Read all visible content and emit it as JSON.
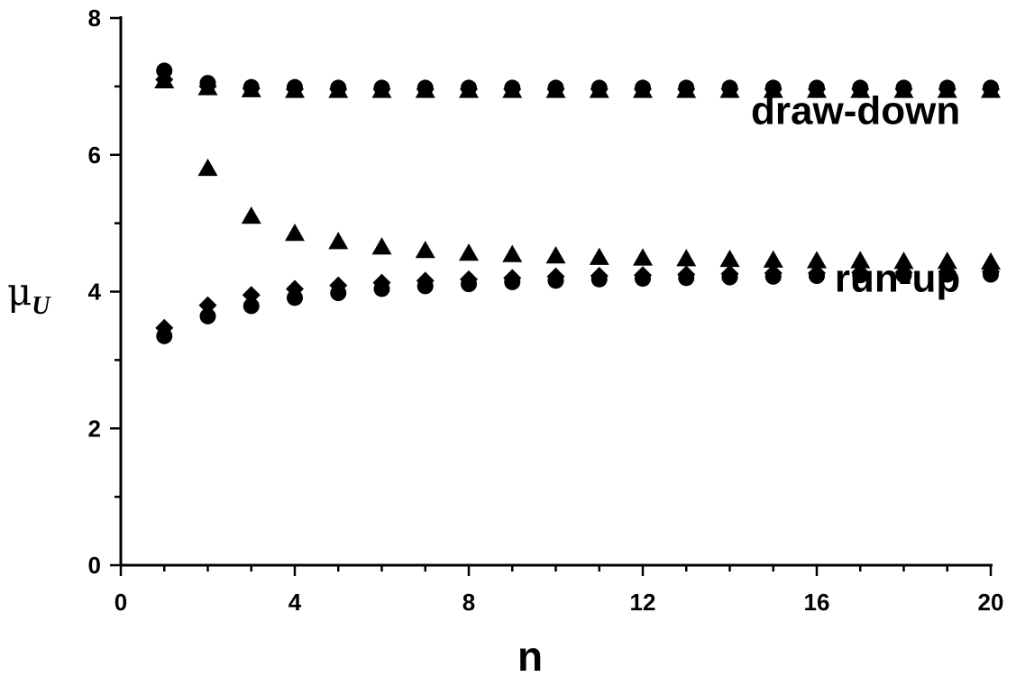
{
  "chart_data": {
    "type": "scatter",
    "xlabel": "n",
    "ylabel": {
      "symbol": "μ",
      "subscript": "U"
    },
    "xlim": [
      0,
      20
    ],
    "ylim": [
      0,
      8
    ],
    "xticks": [
      0,
      4,
      8,
      12,
      16,
      20
    ],
    "yticks": [
      0,
      2,
      4,
      6,
      8
    ],
    "grid": false,
    "annotations": [
      {
        "text": "draw-down",
        "x": 19.3,
        "y": 6.45
      },
      {
        "text": "run-up",
        "x": 19.3,
        "y": 4.0
      }
    ],
    "series": [
      {
        "marker": "circle",
        "group": "draw-down",
        "x": [
          1,
          2,
          3,
          4,
          5,
          6,
          7,
          8,
          9,
          10,
          11,
          12,
          13,
          14,
          15,
          16,
          17,
          18,
          19,
          20
        ],
        "y": [
          7.23,
          7.05,
          6.99,
          6.99,
          6.98,
          6.98,
          6.98,
          6.98,
          6.98,
          6.98,
          6.98,
          6.98,
          6.98,
          6.98,
          6.98,
          6.98,
          6.98,
          6.98,
          6.98,
          6.98
        ]
      },
      {
        "marker": "diamond",
        "group": "draw-down",
        "x": [
          1,
          2,
          3,
          4,
          5,
          6,
          7,
          8,
          9,
          10,
          11,
          12,
          13,
          14,
          15,
          16,
          17,
          18,
          19,
          20
        ],
        "y": [
          7.1,
          7.0,
          6.97,
          6.96,
          6.96,
          6.96,
          6.96,
          6.96,
          6.96,
          6.96,
          6.96,
          6.96,
          6.96,
          6.96,
          6.96,
          6.96,
          6.96,
          6.96,
          6.96,
          6.96
        ]
      },
      {
        "marker": "triangle",
        "group": "draw-down",
        "x": [
          1,
          2,
          3,
          4,
          5,
          6,
          7,
          8,
          9,
          10,
          11,
          12,
          13,
          14,
          15,
          16,
          17,
          18,
          19,
          20
        ],
        "y": [
          7.08,
          6.98,
          6.95,
          6.94,
          6.94,
          6.94,
          6.94,
          6.94,
          6.94,
          6.94,
          6.94,
          6.94,
          6.94,
          6.94,
          6.94,
          6.94,
          6.94,
          6.94,
          6.94,
          6.94
        ]
      },
      {
        "marker": "triangle",
        "group": "run-up",
        "x": [
          2,
          3,
          4,
          5,
          6,
          7,
          8,
          9,
          10,
          11,
          12,
          13,
          14,
          15,
          16,
          17,
          18,
          19,
          20
        ],
        "y": [
          5.8,
          5.1,
          4.85,
          4.73,
          4.65,
          4.6,
          4.56,
          4.54,
          4.52,
          4.5,
          4.49,
          4.48,
          4.47,
          4.46,
          4.45,
          4.45,
          4.44,
          4.44,
          4.43
        ]
      },
      {
        "marker": "diamond",
        "group": "run-up",
        "x": [
          1,
          2,
          3,
          4,
          5,
          6,
          7,
          8,
          9,
          10,
          11,
          12,
          13,
          14,
          15,
          16,
          17,
          18,
          19,
          20
        ],
        "y": [
          3.47,
          3.8,
          3.95,
          4.04,
          4.09,
          4.13,
          4.16,
          4.18,
          4.2,
          4.22,
          4.23,
          4.24,
          4.25,
          4.26,
          4.27,
          4.27,
          4.28,
          4.28,
          4.29,
          4.29
        ]
      },
      {
        "marker": "circle",
        "group": "run-up",
        "x": [
          1,
          2,
          3,
          4,
          5,
          6,
          7,
          8,
          9,
          10,
          11,
          12,
          13,
          14,
          15,
          16,
          17,
          18,
          19,
          20
        ],
        "y": [
          3.35,
          3.64,
          3.79,
          3.91,
          3.98,
          4.04,
          4.08,
          4.11,
          4.14,
          4.16,
          4.18,
          4.19,
          4.2,
          4.21,
          4.22,
          4.23,
          4.24,
          4.24,
          4.25,
          4.25
        ]
      }
    ]
  }
}
